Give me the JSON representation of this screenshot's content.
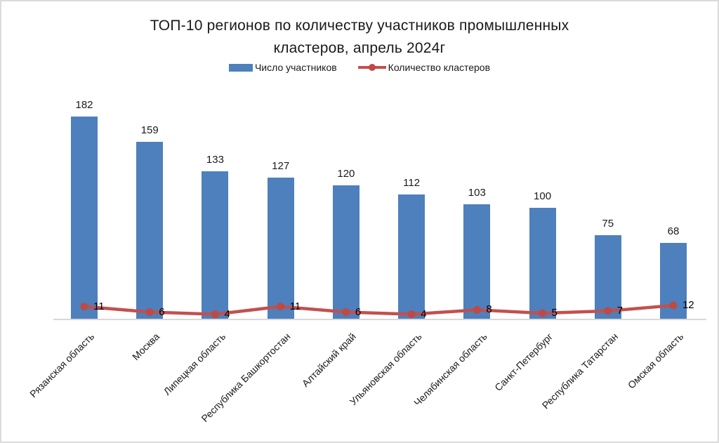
{
  "title": {
    "line1": "ТОП-10 регионов по количеству участников промышленных",
    "line2": "кластеров, апрель 2024г"
  },
  "legend": {
    "bar_label": "Число участников",
    "line_label": "Количество кластеров"
  },
  "colors": {
    "bar": "#4d80bd",
    "line": "#c2504d",
    "marker": "#bd4a46",
    "axis": "#d8d8d8",
    "frame": "#dbdbdb",
    "text": "#1a1a1a"
  },
  "chart_data": {
    "type": "bar",
    "combo": "bar+line",
    "title": "ТОП-10 регионов по количеству участников промышленных кластеров, апрель 2024г",
    "categories": [
      "Рязанская область",
      "Москва",
      "Липецкая область",
      "Республика Башкортостан",
      "Алтайский край",
      "Ульяновская область",
      "Челябинская область",
      "Санкт-Петербург",
      "Республика Татарстан",
      "Омская область"
    ],
    "series": [
      {
        "name": "Число участников",
        "type": "bar",
        "color": "#4d80bd",
        "values": [
          182,
          159,
          133,
          127,
          120,
          112,
          103,
          100,
          75,
          68
        ]
      },
      {
        "name": "Количество кластеров",
        "type": "line",
        "color": "#c2504d",
        "values": [
          11,
          6,
          4,
          11,
          6,
          4,
          8,
          5,
          7,
          12
        ]
      }
    ],
    "xlabel": "",
    "ylabel": "",
    "ylim": [
      0,
      182
    ],
    "grid": false,
    "legend_position": "top",
    "data_labels": true,
    "x_tick_rotation": 45
  }
}
